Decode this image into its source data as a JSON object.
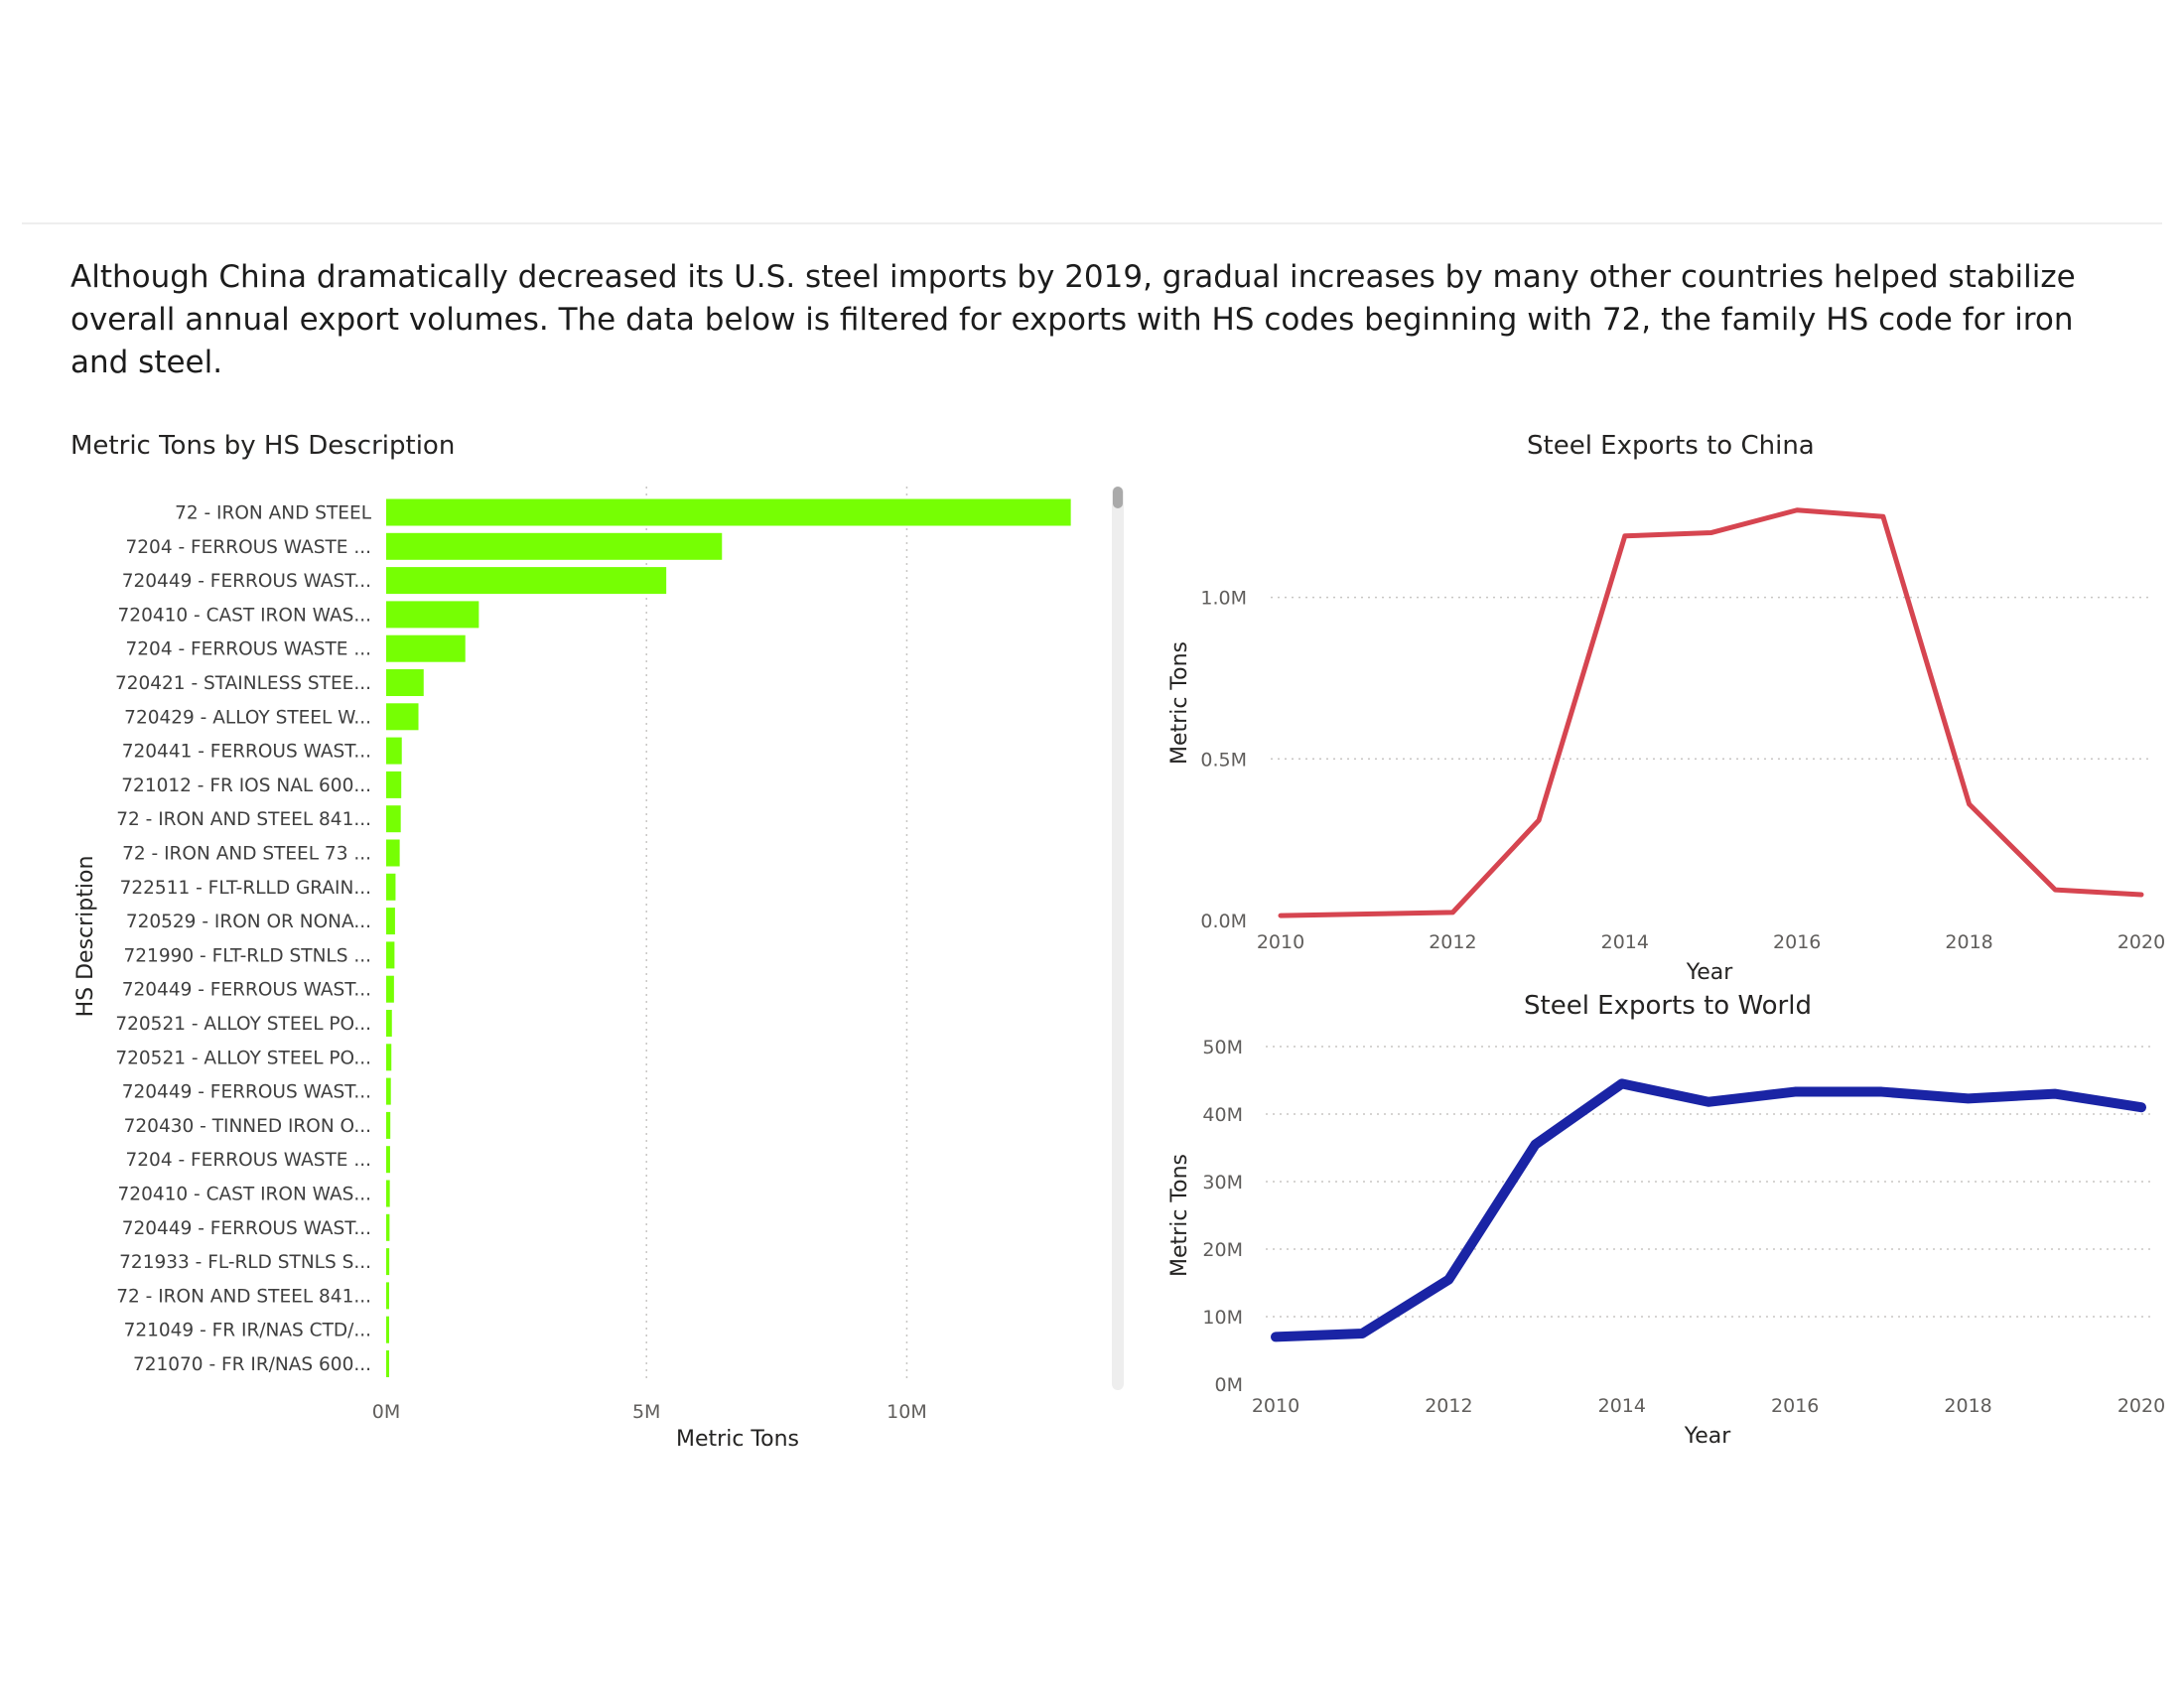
{
  "intro_text": "Although China dramatically decreased its U.S. steel imports by 2019, gradual increases by many other countries helped stabilize overall annual export volumes.  The data below is filtered for exports with HS codes beginning with 72, the family HS code for iron and steel.",
  "colors": {
    "bar": "#76FF03",
    "china_line": "#D64550",
    "world_line": "#1A24A5",
    "grid": "#c8c6c4",
    "scrollbar_track": "#eeeeee",
    "scrollbar_thumb": "#aaaaaa"
  },
  "chart_data": [
    {
      "type": "bar",
      "orientation": "horizontal",
      "title": "Metric Tons by HS Description",
      "xlabel": "Metric Tons",
      "ylabel": "HS Description",
      "xlim": [
        0,
        13500000
      ],
      "xticks": [
        {
          "value": 0,
          "label": "0M"
        },
        {
          "value": 5000000,
          "label": "5M"
        },
        {
          "value": 10000000,
          "label": "10M"
        }
      ],
      "grid": "vertical dotted",
      "categories": [
        "72 - IRON AND STEEL",
        "7204 - FERROUS WASTE ...",
        "720449 - FERROUS WAST...",
        "720410 - CAST IRON WAS...",
        "7204 - FERROUS WASTE ...",
        "720421 - STAINLESS STEE...",
        "720429 - ALLOY STEEL W...",
        "720441 - FERROUS WAST...",
        "721012 - FR IOS NAL 600...",
        "72 - IRON AND STEEL 841...",
        "72 - IRON AND STEEL 73 ...",
        "722511 - FLT-RLLD GRAIN...",
        "720529 - IRON OR NONA...",
        "721990 - FLT-RLD STNLS ...",
        "720449 - FERROUS WAST...",
        "720521 - ALLOY STEEL PO...",
        "720521 - ALLOY STEEL PO...",
        "720449 - FERROUS WAST...",
        "720430 - TINNED IRON O...",
        "7204 - FERROUS WASTE ...",
        "720410 - CAST IRON WAS...",
        "720449 - FERROUS WAST...",
        "721933 - FL-RLD STNLS S...",
        "72 - IRON AND STEEL 841...",
        "721049 - FR IR/NAS CTD/...",
        "721070 - FR IR/NAS 600..."
      ],
      "values": [
        13150000,
        6450000,
        5380000,
        1780000,
        1520000,
        720000,
        620000,
        300000,
        290000,
        280000,
        260000,
        180000,
        170000,
        160000,
        150000,
        110000,
        100000,
        90000,
        80000,
        75000,
        70000,
        65000,
        60000,
        55000,
        50000,
        45000
      ]
    },
    {
      "type": "line",
      "title": "Steel Exports to China",
      "xlabel": "Year",
      "ylabel": "Metric Tons",
      "xlim": [
        2010,
        2020
      ],
      "ylim": [
        0,
        1300000
      ],
      "xticks": [
        2010,
        2012,
        2014,
        2016,
        2018,
        2020
      ],
      "yticks": [
        {
          "value": 0,
          "label": "0.0M"
        },
        {
          "value": 500000,
          "label": "0.5M"
        },
        {
          "value": 1000000,
          "label": "1.0M"
        }
      ],
      "grid": "horizontal dotted",
      "x": [
        2010,
        2011,
        2012,
        2013,
        2014,
        2015,
        2016,
        2017,
        2018,
        2019,
        2020
      ],
      "values": [
        15000,
        20000,
        25000,
        310000,
        1190000,
        1200000,
        1270000,
        1250000,
        360000,
        95000,
        80000
      ]
    },
    {
      "type": "line",
      "title": "Steel Exports to World",
      "xlabel": "Year",
      "ylabel": "Metric Tons",
      "xlim": [
        2010,
        2020
      ],
      "ylim": [
        0,
        50000000
      ],
      "xticks": [
        2010,
        2012,
        2014,
        2016,
        2018,
        2020
      ],
      "yticks": [
        {
          "value": 0,
          "label": "0M"
        },
        {
          "value": 10000000,
          "label": "10M"
        },
        {
          "value": 20000000,
          "label": "20M"
        },
        {
          "value": 30000000,
          "label": "30M"
        },
        {
          "value": 40000000,
          "label": "40M"
        },
        {
          "value": 50000000,
          "label": "50M"
        }
      ],
      "grid": "horizontal dotted",
      "x": [
        2010,
        2011,
        2012,
        2013,
        2014,
        2015,
        2016,
        2017,
        2018,
        2019,
        2020
      ],
      "values": [
        7000000,
        7500000,
        15500000,
        35500000,
        44500000,
        41800000,
        43300000,
        43300000,
        42300000,
        43000000,
        41000000
      ]
    }
  ]
}
